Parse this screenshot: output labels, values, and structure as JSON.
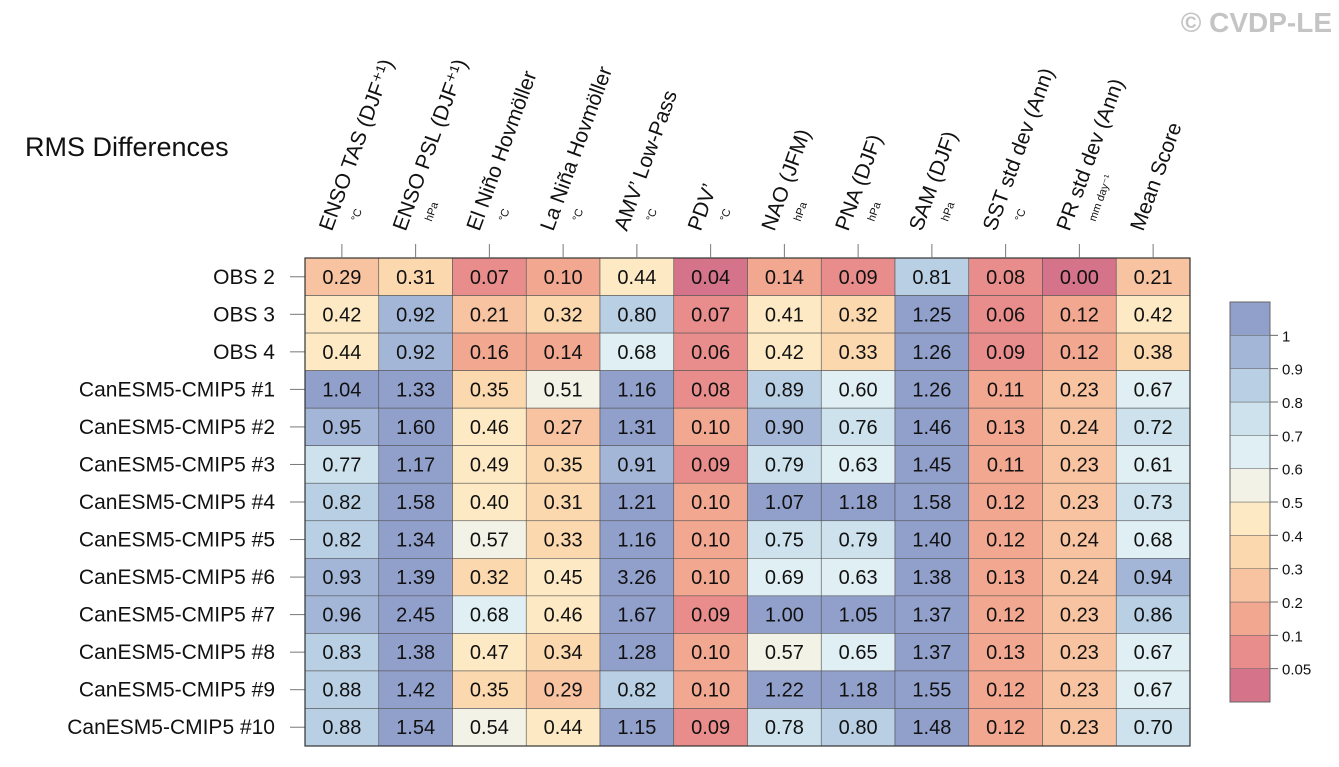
{
  "chart_data": {
    "type": "heatmap",
    "title": "RMS Differences",
    "watermark": "© CVDP-LE",
    "columns": [
      "ENSO TAS (DJF⁺¹)",
      "ENSO PSL (DJF⁺¹)",
      "El Niño Hovmöller",
      "La Niña Hovmöller",
      "AMV’ Low-Pass",
      "PDV’",
      "NAO (JFM)",
      "PNA (DJF)",
      "SAM (DJF)",
      "SST std dev (Ann)",
      "PR std dev (Ann)",
      "Mean Score"
    ],
    "column_units": [
      "°C",
      "hPa",
      "°C",
      "°C",
      "°C",
      "°C",
      "hPa",
      "hPa",
      "hPa",
      "°C",
      "mm day⁻¹",
      null
    ],
    "rows": [
      "OBS 2",
      "OBS 3",
      "OBS 4",
      "CanESM5-CMIP5 #1",
      "CanESM5-CMIP5 #2",
      "CanESM5-CMIP5 #3",
      "CanESM5-CMIP5 #4",
      "CanESM5-CMIP5 #5",
      "CanESM5-CMIP5 #6",
      "CanESM5-CMIP5 #7",
      "CanESM5-CMIP5 #8",
      "CanESM5-CMIP5 #9",
      "CanESM5-CMIP5 #10"
    ],
    "values": [
      [
        0.29,
        0.31,
        0.07,
        0.1,
        0.44,
        0.04,
        0.14,
        0.09,
        0.81,
        0.08,
        0,
        0.21
      ],
      [
        0.42,
        0.92,
        0.21,
        0.32,
        0.8,
        0.07,
        0.41,
        0.32,
        1.25,
        0.06,
        0.12,
        0.42
      ],
      [
        0.44,
        0.92,
        0.16,
        0.14,
        0.68,
        0.06,
        0.42,
        0.33,
        1.26,
        0.09,
        0.12,
        0.38
      ],
      [
        1.04,
        1.33,
        0.35,
        0.51,
        1.16,
        0.08,
        0.89,
        0.6,
        1.26,
        0.11,
        0.23,
        0.67
      ],
      [
        0.95,
        1.6,
        0.46,
        0.27,
        1.31,
        0.1,
        0.9,
        0.76,
        1.46,
        0.13,
        0.24,
        0.72
      ],
      [
        0.77,
        1.17,
        0.49,
        0.35,
        0.91,
        0.09,
        0.79,
        0.63,
        1.45,
        0.11,
        0.23,
        0.61
      ],
      [
        0.82,
        1.58,
        0.4,
        0.31,
        1.21,
        0.1,
        1.07,
        1.18,
        1.58,
        0.12,
        0.23,
        0.73
      ],
      [
        0.82,
        1.34,
        0.57,
        0.33,
        1.16,
        0.1,
        0.75,
        0.79,
        1.4,
        0.12,
        0.24,
        0.68
      ],
      [
        0.93,
        1.39,
        0.32,
        0.45,
        3.26,
        0.1,
        0.69,
        0.63,
        1.38,
        0.13,
        0.24,
        0.94
      ],
      [
        0.96,
        2.45,
        0.68,
        0.46,
        1.67,
        0.09,
        1,
        1.05,
        1.37,
        0.12,
        0.23,
        0.86
      ],
      [
        0.83,
        1.38,
        0.47,
        0.34,
        1.28,
        0.1,
        0.57,
        0.65,
        1.37,
        0.13,
        0.23,
        0.67
      ],
      [
        0.88,
        1.42,
        0.35,
        0.29,
        0.82,
        0.1,
        1.22,
        1.18,
        1.55,
        0.12,
        0.23,
        0.67
      ],
      [
        0.88,
        1.54,
        0.54,
        0.44,
        1.15,
        0.09,
        0.78,
        0.8,
        1.48,
        0.12,
        0.23,
        0.7
      ]
    ],
    "value_labels": [
      [
        "0.29",
        "0.31",
        "0.07",
        "0.10",
        "0.44",
        "0.04",
        "0.14",
        "0.09",
        "0.81",
        "0.08",
        "0.00",
        "0.21"
      ],
      [
        "0.42",
        "0.92",
        "0.21",
        "0.32",
        "0.80",
        "0.07",
        "0.41",
        "0.32",
        "1.25",
        "0.06",
        "0.12",
        "0.42"
      ],
      [
        "0.44",
        "0.92",
        "0.16",
        "0.14",
        "0.68",
        "0.06",
        "0.42",
        "0.33",
        "1.26",
        "0.09",
        "0.12",
        "0.38"
      ],
      [
        "1.04",
        "1.33",
        "0.35",
        "0.51",
        "1.16",
        "0.08",
        "0.89",
        "0.60",
        "1.26",
        "0.11",
        "0.23",
        "0.67"
      ],
      [
        "0.95",
        "1.60",
        "0.46",
        "0.27",
        "1.31",
        "0.10",
        "0.90",
        "0.76",
        "1.46",
        "0.13",
        "0.24",
        "0.72"
      ],
      [
        "0.77",
        "1.17",
        "0.49",
        "0.35",
        "0.91",
        "0.09",
        "0.79",
        "0.63",
        "1.45",
        "0.11",
        "0.23",
        "0.61"
      ],
      [
        "0.82",
        "1.58",
        "0.40",
        "0.31",
        "1.21",
        "0.10",
        "1.07",
        "1.18",
        "1.58",
        "0.12",
        "0.23",
        "0.73"
      ],
      [
        "0.82",
        "1.34",
        "0.57",
        "0.33",
        "1.16",
        "0.10",
        "0.75",
        "0.79",
        "1.40",
        "0.12",
        "0.24",
        "0.68"
      ],
      [
        "0.93",
        "1.39",
        "0.32",
        "0.45",
        "3.26",
        "0.10",
        "0.69",
        "0.63",
        "1.38",
        "0.13",
        "0.24",
        "0.94"
      ],
      [
        "0.96",
        "2.45",
        "0.68",
        "0.46",
        "1.67",
        "0.09",
        "1.00",
        "1.05",
        "1.37",
        "0.12",
        "0.23",
        "0.86"
      ],
      [
        "0.83",
        "1.38",
        "0.47",
        "0.34",
        "1.28",
        "0.10",
        "0.57",
        "0.65",
        "1.37",
        "0.13",
        "0.23",
        "0.67"
      ],
      [
        "0.88",
        "1.42",
        "0.35",
        "0.29",
        "0.82",
        "0.10",
        "1.22",
        "1.18",
        "1.55",
        "0.12",
        "0.23",
        "0.67"
      ],
      [
        "0.88",
        "1.54",
        "0.54",
        "0.44",
        "1.15",
        "0.09",
        "0.78",
        "0.80",
        "1.48",
        "0.12",
        "0.23",
        "0.70"
      ]
    ],
    "colorbar_ticks": [
      0.05,
      0.1,
      0.2,
      0.3,
      0.4,
      0.5,
      0.6,
      0.7,
      0.8,
      0.9,
      1
    ],
    "colors": [
      "#d4738a",
      "#e88d8b",
      "#f2a790",
      "#f8c3a0",
      "#fcd8ae",
      "#fdeac4",
      "#f3f2e7",
      "#e0eff3",
      "#cde2ec",
      "#b8cfe4",
      "#a3b6d8",
      "#919fcb"
    ]
  }
}
